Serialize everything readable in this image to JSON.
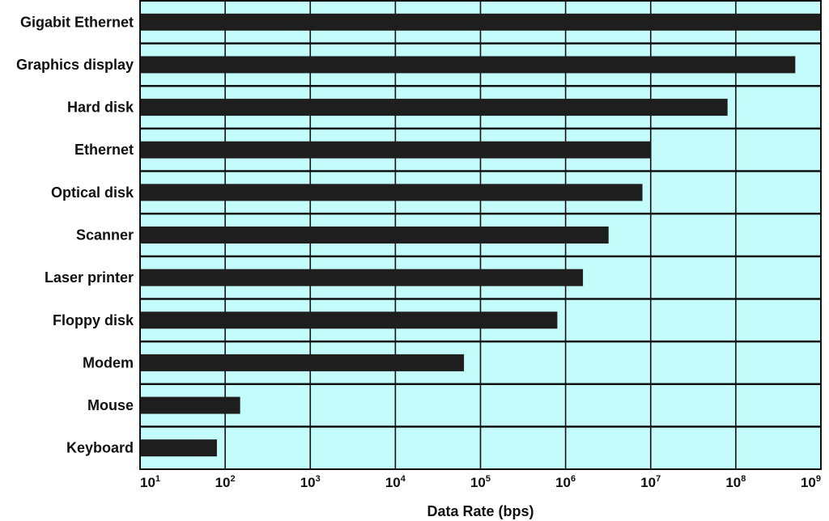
{
  "chart_data": {
    "type": "bar",
    "orientation": "horizontal",
    "xscale": "log",
    "xlabel": "Data Rate (bps)",
    "ylabel": "",
    "xlim": [
      10,
      1000000000
    ],
    "grid": true,
    "plot_background": "#c4fbfb",
    "bar_color": "#1e1e1e",
    "grid_color": "#111111",
    "x_ticks": [
      {
        "base": "10",
        "exp": "1"
      },
      {
        "base": "10",
        "exp": "2"
      },
      {
        "base": "10",
        "exp": "3"
      },
      {
        "base": "10",
        "exp": "4"
      },
      {
        "base": "10",
        "exp": "5"
      },
      {
        "base": "10",
        "exp": "6"
      },
      {
        "base": "10",
        "exp": "7"
      },
      {
        "base": "10",
        "exp": "8"
      },
      {
        "base": "10",
        "exp": "9"
      }
    ],
    "categories": [
      "Gigabit Ethernet",
      "Graphics display",
      "Hard disk",
      "Ethernet",
      "Optical disk",
      "Scanner",
      "Laser printer",
      "Floppy disk",
      "Modem",
      "Mouse",
      "Keyboard"
    ],
    "values": [
      1000000000,
      500000000,
      80000000,
      10000000,
      8000000,
      3200000,
      1600000,
      800000,
      64000,
      150,
      80
    ]
  }
}
